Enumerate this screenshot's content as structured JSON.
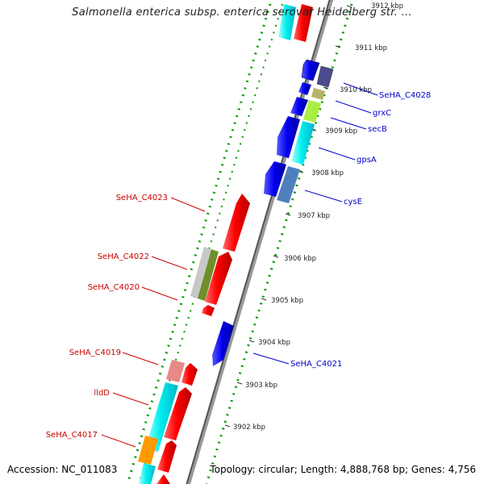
{
  "title": "Salmonella enterica subsp. enterica serovar Heidelberg str. ...",
  "footer": {
    "accession": "Accession: NC_011083",
    "topology": "Topology: circular; Length: 4,888,768 bp; Genes: 4,756"
  },
  "kbp_labels": [
    "3912 kbp",
    "3911 kbp",
    "3910 kbp",
    "3909 kbp",
    "3908 kbp",
    "3907 kbp",
    "3906 kbp",
    "3905 kbp",
    "3904 kbp",
    "3903 kbp",
    "3902 kbp"
  ],
  "genes_reverse": [
    {
      "label": "SeHA_C4023",
      "color": "#cc0000"
    },
    {
      "label": "SeHA_C4022",
      "color": "#cc0000"
    },
    {
      "label": "SeHA_C4020",
      "color": "#cc0000"
    },
    {
      "label": "SeHA_C4019",
      "color": "#cc0000"
    },
    {
      "label": "lldD",
      "color": "#cc0000"
    },
    {
      "label": "SeHA_C4017",
      "color": "#cc0000"
    }
  ],
  "genes_forward": [
    {
      "label": "SeHA_C4028",
      "color": "#0000cc"
    },
    {
      "label": "grxC",
      "color": "#0000cc"
    },
    {
      "label": "secB",
      "color": "#0000cc"
    },
    {
      "label": "gpsA",
      "color": "#0000cc"
    },
    {
      "label": "cysE",
      "color": "#0000cc"
    },
    {
      "label": "SeHA_C4021",
      "color": "#0000cc"
    }
  ]
}
